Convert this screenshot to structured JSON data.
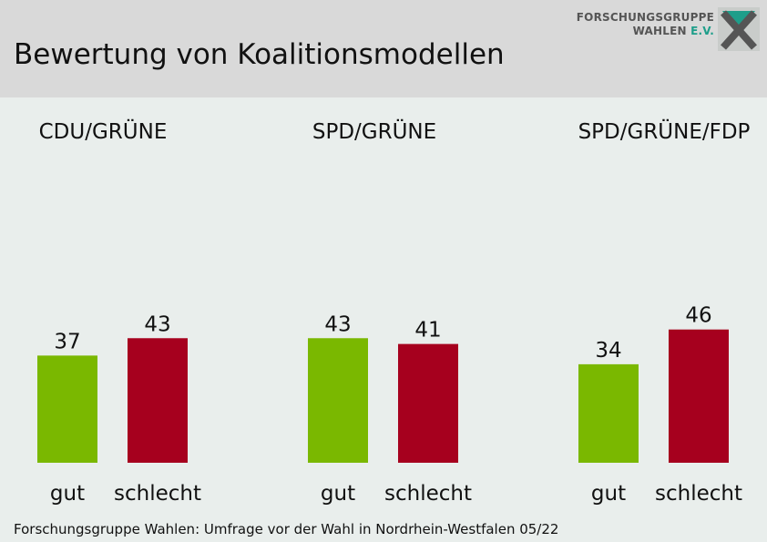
{
  "title": "Bewertung von Koalitionsmodellen",
  "logo": {
    "line1": "FORSCHUNGSGRUPPE",
    "line2_main": "WAHLEN",
    "line2_accent": "E.V."
  },
  "footer": "Forschungsgruppe Wahlen: Umfrage vor der Wahl in Nordrhein-Westfalen 05/22",
  "chart_data": {
    "type": "bar",
    "title": "Bewertung von Koalitionsmodellen",
    "categories": [
      "gut",
      "schlecht"
    ],
    "colors": {
      "gut": "#7ab800",
      "schlecht": "#a6001e"
    },
    "ylim": [
      0,
      100
    ],
    "grid": false,
    "legend": "none",
    "groups": [
      {
        "name": "CDU/GRÜNE",
        "values": [
          37,
          43
        ]
      },
      {
        "name": "SPD/GRÜNE",
        "values": [
          43,
          41
        ]
      },
      {
        "name": "SPD/GRÜNE/FDP",
        "values": [
          34,
          46
        ]
      }
    ]
  }
}
